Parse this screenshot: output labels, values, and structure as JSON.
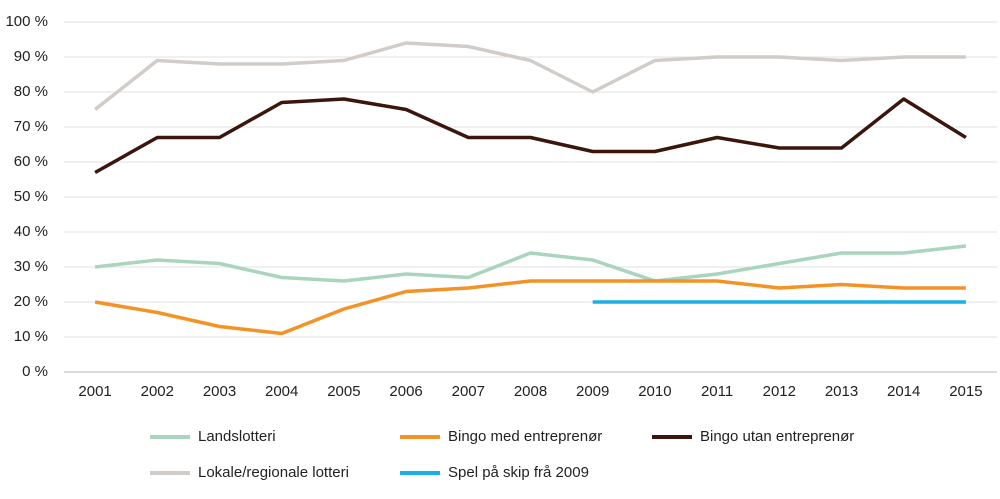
{
  "chart_data": {
    "type": "line",
    "categories": [
      "2001",
      "2002",
      "2003",
      "2004",
      "2005",
      "2006",
      "2007",
      "2008",
      "2009",
      "2010",
      "2011",
      "2012",
      "2013",
      "2014",
      "2015"
    ],
    "ylim": [
      0,
      100
    ],
    "yticks": [
      {
        "value": 0,
        "label": "0 %"
      },
      {
        "value": 10,
        "label": "10 %"
      },
      {
        "value": 20,
        "label": "20 %"
      },
      {
        "value": 30,
        "label": "30 %"
      },
      {
        "value": 40,
        "label": "40 %"
      },
      {
        "value": 50,
        "label": "50 %"
      },
      {
        "value": 60,
        "label": "60 %"
      },
      {
        "value": 70,
        "label": "70 %"
      },
      {
        "value": 80,
        "label": "80 %"
      },
      {
        "value": 90,
        "label": "90 %"
      },
      {
        "value": 100,
        "label": "100 %"
      }
    ],
    "grid": true,
    "series": [
      {
        "name": "Landslotteri",
        "color": "#a9d5be",
        "values": [
          30,
          32,
          31,
          27,
          26,
          28,
          27,
          34,
          32,
          26,
          28,
          31,
          34,
          34,
          36
        ]
      },
      {
        "name": "Bingo med entreprenør",
        "color": "#f39325",
        "values": [
          20,
          17,
          13,
          11,
          18,
          23,
          24,
          26,
          26,
          26,
          26,
          24,
          25,
          24,
          24
        ]
      },
      {
        "name": "Bingo utan entreprenør",
        "color": "#3b160c",
        "values": [
          57,
          67,
          67,
          77,
          78,
          75,
          67,
          67,
          63,
          63,
          67,
          64,
          64,
          78,
          67
        ]
      },
      {
        "name": "Lokale/regionale lotteri",
        "color": "#d1ccc8",
        "values": [
          75,
          89,
          88,
          88,
          89,
          94,
          93,
          89,
          80,
          89,
          90,
          90,
          89,
          90,
          90
        ]
      },
      {
        "name": "Spel på skip frå 2009",
        "color": "#1aafe6",
        "values": [
          null,
          null,
          null,
          null,
          null,
          null,
          null,
          null,
          20,
          20,
          20,
          20,
          20,
          20,
          20
        ]
      }
    ]
  }
}
